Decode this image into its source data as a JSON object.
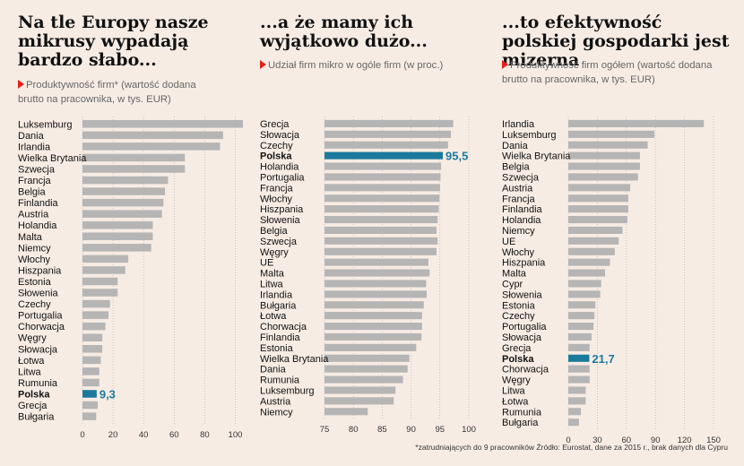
{
  "footnote": "*zatrudniających do 9 pracowników Źródło: Eurostat, dane za 2015 r., brak danych dla Cypru",
  "colors": {
    "bar": "#b5b5b5",
    "highlight": "#1b7a9c",
    "grid": "#9a9a9a",
    "accent": "#e32119"
  },
  "panels": [
    {
      "title": "Na tle Europy nasze mikrusy wypadają bardzo słabo...",
      "subtitle": "Produktywność firm* (wartość dodana brutto na pracownika, w tys. EUR)"
    },
    {
      "title": "...a że mamy ich wyjątkowo dużo...",
      "subtitle": "Udział firm mikro w ogóle firm (w proc.)"
    },
    {
      "title": "...to efektywność polskiej gospodarki jest mizerna",
      "subtitle": "Produktywność firm ogółem (wartość dodana brutto na pracownika, w tys. EUR)"
    }
  ],
  "chart_data": [
    {
      "type": "bar",
      "orientation": "horizontal",
      "categories": [
        "Luksemburg",
        "Dania",
        "Irlandia",
        "Wielka Brytania",
        "Szwecja",
        "Francja",
        "Belgia",
        "Finlandia",
        "Austria",
        "Holandia",
        "Malta",
        "Niemcy",
        "Włochy",
        "Hiszpania",
        "Estonia",
        "Słowenia",
        "Czechy",
        "Portugalia",
        "Chorwacja",
        "Węgry",
        "Słowacja",
        "Łotwa",
        "Litwa",
        "Rumunia",
        "Polska",
        "Grecja",
        "Bułgaria"
      ],
      "values": [
        106,
        92,
        90,
        67,
        67,
        56,
        54,
        53,
        52,
        46,
        46,
        45,
        30,
        28,
        23,
        23,
        18,
        17,
        15,
        13,
        13,
        12,
        11,
        11,
        9.3,
        10,
        9
      ],
      "highlight": "Polska",
      "highlight_label": "9,3",
      "xlim": [
        0,
        105
      ],
      "xticks": [
        0,
        20,
        40,
        60,
        80,
        100
      ]
    },
    {
      "type": "bar",
      "orientation": "horizontal",
      "categories": [
        "Grecja",
        "Słowacja",
        "Czechy",
        "Polska",
        "Holandia",
        "Portugalia",
        "Francja",
        "Włochy",
        "Hiszpania",
        "Słowenia",
        "Belgia",
        "Szwecja",
        "Węgry",
        "UE",
        "Malta",
        "Litwa",
        "Irlandia",
        "Bułgaria",
        "Łotwa",
        "Chorwacja",
        "Finlandia",
        "Estonia",
        "Wielka Brytania",
        "Dania",
        "Rumunia",
        "Luksemburg",
        "Austria",
        "Niemcy"
      ],
      "values": [
        97.3,
        96.9,
        96.4,
        95.5,
        95.2,
        95.1,
        95,
        94.9,
        94.8,
        94.6,
        94.4,
        94.6,
        94.4,
        93,
        93.2,
        92.6,
        92.7,
        92.2,
        91.9,
        91.9,
        91.8,
        90.9,
        89.7,
        89.4,
        88.6,
        87.3,
        87,
        82.5
      ],
      "highlight": "Polska",
      "highlight_label": "95,5",
      "xlim": [
        75,
        100
      ],
      "xticks": [
        75,
        80,
        85,
        90,
        95,
        100
      ]
    },
    {
      "type": "bar",
      "orientation": "horizontal",
      "categories": [
        "Irlandia",
        "Luksemburg",
        "Dania",
        "Wielka Brytania",
        "Belgia",
        "Szwecja",
        "Austria",
        "Francja",
        "Finlandia",
        "Holandia",
        "Niemcy",
        "UE",
        "Włochy",
        "Hiszpania",
        "Malta",
        "Cypr",
        "Słowenia",
        "Estonia",
        "Czechy",
        "Portugalia",
        "Słowacja",
        "Grecja",
        "Polska",
        "Chorwacja",
        "Węgry",
        "Litwa",
        "Łotwa",
        "Rumunia",
        "Bułgaria"
      ],
      "values": [
        140,
        89,
        82,
        74,
        74,
        72,
        64,
        62,
        62,
        61,
        56,
        52,
        48,
        43,
        38,
        34,
        33,
        28,
        27,
        26,
        24,
        22,
        21.7,
        22,
        22,
        18,
        18,
        13,
        11
      ],
      "highlight": "Polska",
      "highlight_label": "21,7",
      "xlim": [
        0,
        150
      ],
      "xticks": [
        0,
        30,
        60,
        90,
        120,
        150
      ]
    }
  ]
}
